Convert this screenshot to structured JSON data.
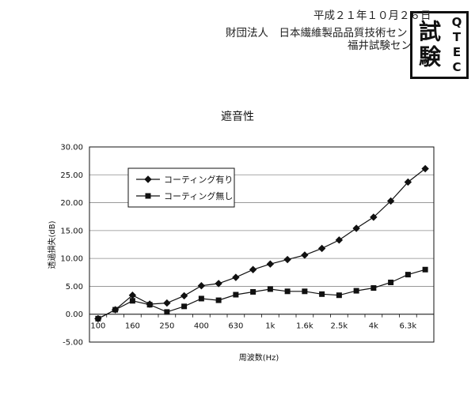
{
  "header": {
    "date": "平成２１年１０月２６日",
    "organization": "財団法人　日本繊維製品品質技術セン",
    "branch": "福井試験セン"
  },
  "seal": {
    "left": "試験",
    "right": "QTEC"
  },
  "chart_data": {
    "type": "line",
    "title": "遮音性",
    "xlabel": "周波数(Hz)",
    "ylabel": "透過損失(dB)",
    "x": [
      100,
      125,
      160,
      200,
      250,
      315,
      400,
      500,
      630,
      800,
      1000,
      1250,
      1600,
      2000,
      2500,
      3150,
      4000,
      5000,
      6300,
      8000
    ],
    "xtick_labels": [
      "100",
      "160",
      "250",
      "400",
      "630",
      "1k",
      "1.6k",
      "2.5k",
      "4k",
      "6.3k"
    ],
    "ytick_labels": [
      "30.00",
      "25.00",
      "20.00",
      "15.00",
      "10.00",
      "5.00",
      "0.00",
      "-5.00"
    ],
    "ylim": [
      -5,
      30
    ],
    "grid": true,
    "legend_position": "upper-left",
    "series": [
      {
        "name": "コーティング有り",
        "marker": "diamond",
        "color": "#111111",
        "values": [
          -0.8,
          0.8,
          3.4,
          1.8,
          2.0,
          3.3,
          5.1,
          5.5,
          6.6,
          8.0,
          9.0,
          9.8,
          10.6,
          11.8,
          13.3,
          15.4,
          17.4,
          20.3,
          23.7,
          26.1
        ]
      },
      {
        "name": "コーティング無し",
        "marker": "square",
        "color": "#111111",
        "values": [
          -0.8,
          0.8,
          2.4,
          1.7,
          0.4,
          1.4,
          2.8,
          2.5,
          3.5,
          4.0,
          4.5,
          4.1,
          4.1,
          3.6,
          3.4,
          4.2,
          4.7,
          5.7,
          7.1,
          8.0
        ]
      }
    ]
  }
}
